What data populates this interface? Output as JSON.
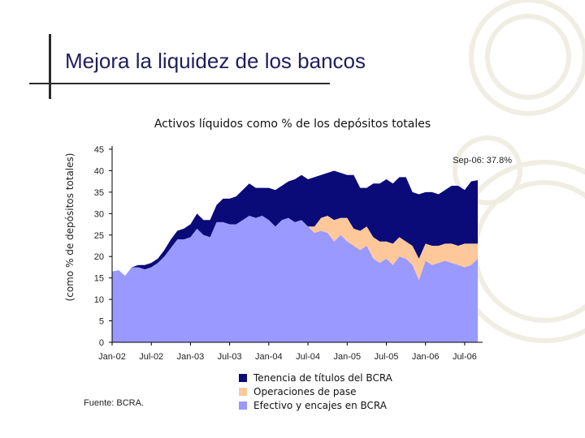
{
  "slide_title": "Mejora la liquidez de los bancos",
  "source": "Fuente: BCRA.",
  "chart_data": {
    "type": "area",
    "stacked": true,
    "title": "Activos líquidos como % de los depósitos totales",
    "xlabel": "",
    "ylabel": "(como % de depósitos totales)",
    "ylim": [
      0,
      45
    ],
    "yticks": [
      "0",
      "5",
      "10",
      "15",
      "20",
      "25",
      "30",
      "35",
      "40",
      "45"
    ],
    "xticks": [
      "Jan-02",
      "Jul-02",
      "Jan-03",
      "Jul-03",
      "Jan-04",
      "Jul-04",
      "Jan-05",
      "Jul-05",
      "Jan-06",
      "Jul-06"
    ],
    "x": [
      "Jan-02",
      "Feb-02",
      "Mar-02",
      "Apr-02",
      "May-02",
      "Jun-02",
      "Jul-02",
      "Aug-02",
      "Sep-02",
      "Oct-02",
      "Nov-02",
      "Dec-02",
      "Jan-03",
      "Feb-03",
      "Mar-03",
      "Apr-03",
      "May-03",
      "Jun-03",
      "Jul-03",
      "Aug-03",
      "Sep-03",
      "Oct-03",
      "Nov-03",
      "Dec-03",
      "Jan-04",
      "Feb-04",
      "Mar-04",
      "Apr-04",
      "May-04",
      "Jun-04",
      "Jul-04",
      "Aug-04",
      "Sep-04",
      "Oct-04",
      "Nov-04",
      "Dec-04",
      "Jan-05",
      "Feb-05",
      "Mar-05",
      "Apr-05",
      "May-05",
      "Jun-05",
      "Jul-05",
      "Aug-05",
      "Sep-05",
      "Oct-05",
      "Nov-05",
      "Dec-05",
      "Jan-06",
      "Feb-06",
      "Mar-06",
      "Apr-06",
      "May-06",
      "Jun-06",
      "Jul-06",
      "Aug-06",
      "Sep-06"
    ],
    "series": [
      {
        "name": "Efectivo y encajes en BCRA",
        "color": "#9999ff",
        "values": [
          16.5,
          16.8,
          15.5,
          17.5,
          17.5,
          17.0,
          17.5,
          18.5,
          20.0,
          22.0,
          24.0,
          24.0,
          24.5,
          26.5,
          25.0,
          24.5,
          28.0,
          28.0,
          27.5,
          27.5,
          28.5,
          29.5,
          29.0,
          29.5,
          28.5,
          27.0,
          28.5,
          29.0,
          28.0,
          28.5,
          27.0,
          25.5,
          26.0,
          25.5,
          23.5,
          25.0,
          23.5,
          22.5,
          21.5,
          22.5,
          19.5,
          18.5,
          19.5,
          18.0,
          20.0,
          19.5,
          18.0,
          14.5,
          19.0,
          18.0,
          18.5,
          19.0,
          18.5,
          18.0,
          17.5,
          18.0,
          19.5
        ]
      },
      {
        "name": "Operaciones de pase",
        "color": "#ffc89a",
        "values": [
          0,
          0,
          0,
          0,
          0,
          0,
          0,
          0,
          0,
          0,
          0,
          0,
          0,
          0,
          0,
          0,
          0,
          0,
          0,
          0,
          0,
          0,
          0,
          0,
          0,
          0,
          0,
          0,
          0,
          0,
          0,
          1.5,
          3.0,
          4.0,
          5.0,
          4.0,
          5.5,
          4.0,
          4.5,
          4.5,
          5.0,
          5.0,
          4.0,
          5.0,
          4.5,
          4.0,
          4.5,
          5.0,
          4.0,
          4.5,
          4.0,
          4.0,
          4.5,
          4.5,
          5.5,
          5.0,
          3.5
        ]
      },
      {
        "name": "Tenencia de títulos del BCRA",
        "color": "#0a0a78",
        "values": [
          0,
          0,
          0,
          0,
          0.5,
          1.0,
          1.0,
          1.0,
          1.5,
          2.0,
          2.0,
          2.5,
          3.0,
          3.5,
          3.5,
          4.0,
          4.0,
          5.5,
          6.0,
          6.5,
          7.0,
          7.5,
          7.0,
          6.5,
          7.5,
          8.5,
          8.0,
          8.5,
          10.0,
          10.5,
          11.0,
          11.5,
          10.0,
          10.0,
          11.5,
          10.5,
          10.0,
          12.5,
          10.0,
          9.0,
          12.5,
          13.5,
          14.5,
          14.0,
          14.0,
          15.0,
          12.5,
          15.0,
          12.0,
          12.5,
          12.0,
          12.5,
          13.5,
          14.0,
          12.5,
          14.5,
          14.8
        ]
      }
    ],
    "annotation": "Sep-06: 37.8%",
    "legend_order": [
      "Tenencia de títulos del BCRA",
      "Operaciones de pase",
      "Efectivo y encajes en BCRA"
    ],
    "legend_position": "bottom",
    "grid": false
  }
}
